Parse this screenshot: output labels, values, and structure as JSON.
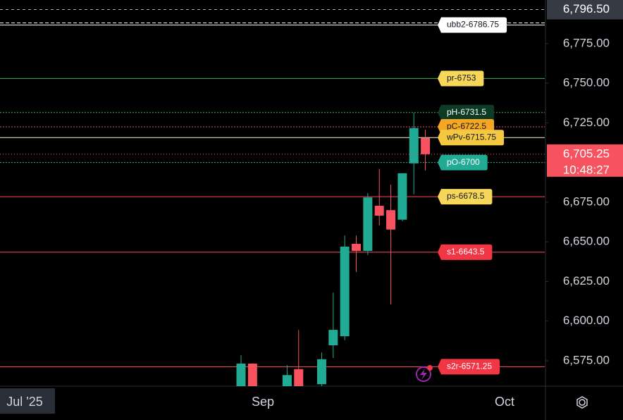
{
  "chart_data": {
    "type": "candlestick",
    "categories": [
      null,
      null,
      null,
      null,
      null,
      null,
      null,
      null,
      null,
      null,
      null,
      null,
      null,
      null,
      null,
      null,
      null
    ],
    "open": [
      6555,
      6573.25,
      null,
      null,
      6558,
      6569.75,
      null,
      6560.25,
      6584.75,
      6590.5,
      6648.75,
      6644.25,
      6672.75,
      6670,
      6664,
      6699.5,
      6715.5
    ],
    "high": [
      6578.5,
      6573.5,
      null,
      null,
      6572.25,
      6594.5,
      null,
      6580.25,
      6618,
      6654,
      6654,
      6680.75,
      6696,
      6686,
      6693.25,
      6731.5,
      6720.75
    ],
    "low": [
      6552,
      6550,
      null,
      null,
      6555,
      6552,
      null,
      6559,
      6576.75,
      6588,
      6631,
      6641.75,
      6660.25,
      6610.5,
      6663,
      6680,
      6695
    ],
    "close": [
      6573.25,
      6556,
      null,
      null,
      6566,
      6556,
      null,
      6576,
      6594.5,
      6647,
      6644.25,
      6678,
      6666.5,
      6657.75,
      6693.25,
      6721.75,
      6705.25
    ],
    "up_color": "#22ab94",
    "down_color": "#f7525f",
    "xlabels": [
      "Jul '25",
      "Sep",
      "Oct"
    ],
    "ylim": [
      6559,
      6802.5
    ],
    "yticks": [
      {
        "value": 6575,
        "label": "6,575.00"
      },
      {
        "value": 6600,
        "label": "6,600.00"
      },
      {
        "value": 6625,
        "label": "6,625.00"
      },
      {
        "value": 6650,
        "label": "6,650.00"
      },
      {
        "value": 6675,
        "label": "6,675.00"
      },
      {
        "value": 6700,
        "label": "6,700.00"
      },
      {
        "value": 6725,
        "label": "6,725.00"
      },
      {
        "value": 6750,
        "label": "6,750.00"
      },
      {
        "value": 6775,
        "label": "6,775.00"
      }
    ],
    "top_marker": {
      "value": 6796.5,
      "label": "6,796.50"
    },
    "last_price": {
      "value": 6705.25,
      "label": "6,705.25",
      "countdown": "10:48:27"
    },
    "levels": [
      {
        "label": "ubb2-6786.75",
        "value": 6786.75,
        "color": "#ffffff",
        "tag_color": "#ffffff",
        "text_color": "#131722",
        "dash": false
      },
      {
        "label": "pr-6753",
        "value": 6753,
        "color": "#4caf50",
        "tag_color": "#f7d75a",
        "text_color": "#131722",
        "dash": false
      },
      {
        "label": "pH-6731.5",
        "value": 6731.5,
        "color": "#4caf50",
        "tag_color": "#0d3b24",
        "text_color": "#ffffff",
        "dash": true
      },
      {
        "label": "pC-6722.5",
        "value": 6722.5,
        "color": "#f7525f",
        "tag_color": "#f5a623",
        "text_color": "#131722",
        "dash": true
      },
      {
        "label": "wPv-6715.75",
        "value": 6715.75,
        "color": "#fff3c4",
        "tag_color": "#f5c842",
        "text_color": "#131722",
        "dash": false
      },
      {
        "label": "pO-6700",
        "value": 6700,
        "color": "#22ab94",
        "tag_color": "#22ab94",
        "text_color": "#ffffff",
        "dash": true
      },
      {
        "label": "ps-6678.5",
        "value": 6678.5,
        "color": "#f7525f",
        "tag_color": "#f7d75a",
        "text_color": "#131722",
        "dash": false
      },
      {
        "label": "s1-6643.5",
        "value": 6643.5,
        "color": "#f7525f",
        "tag_color": "#f23645",
        "text_color": "#ffffff",
        "dash": false
      },
      {
        "label": "s2r-6571.25",
        "value": 6571.25,
        "color": "#f7525f",
        "tag_color": "#f23645",
        "text_color": "#ffffff",
        "dash": false
      }
    ]
  }
}
